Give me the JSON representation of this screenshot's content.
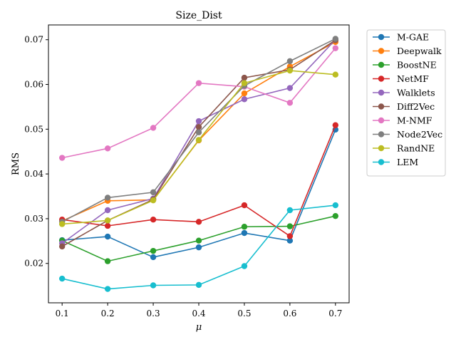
{
  "chart_data": {
    "type": "line",
    "title": "Size_Dist",
    "xlabel": "μ",
    "ylabel": "RMS",
    "x": [
      0.1,
      0.2,
      0.3,
      0.4,
      0.5,
      0.6,
      0.7
    ],
    "x_tick_labels": [
      "0.1",
      "0.2",
      "0.3",
      "0.4",
      "0.5",
      "0.6",
      "0.7"
    ],
    "y_ticks": [
      0.02,
      0.03,
      0.04,
      0.05,
      0.06,
      0.07
    ],
    "y_tick_labels": [
      "0.02",
      "0.03",
      "0.04",
      "0.05",
      "0.06",
      "0.07"
    ],
    "xlim": [
      0.07,
      0.73
    ],
    "ylim": [
      0.0112,
      0.0733
    ],
    "grid": false,
    "legend_position": "outside-right",
    "series": [
      {
        "name": "M-GAE",
        "color": "#1f77b4",
        "values": [
          0.0252,
          0.026,
          0.0214,
          0.0236,
          0.0268,
          0.0251,
          0.0499
        ]
      },
      {
        "name": "Deepwalk",
        "color": "#ff7f0e",
        "values": [
          0.0295,
          0.034,
          0.0342,
          0.0475,
          0.058,
          0.064,
          0.0695
        ]
      },
      {
        "name": "BoostNE",
        "color": "#2ca02c",
        "values": [
          0.0251,
          0.0205,
          0.0228,
          0.0251,
          0.0282,
          0.0283,
          0.0306
        ]
      },
      {
        "name": "NetMF",
        "color": "#d62728",
        "values": [
          0.0298,
          0.0284,
          0.0298,
          0.0293,
          0.033,
          0.0261,
          0.0509
        ]
      },
      {
        "name": "Walklets",
        "color": "#9467bd",
        "values": [
          0.0245,
          0.0319,
          0.0345,
          0.0518,
          0.0567,
          0.0592,
          0.07
        ]
      },
      {
        "name": "Diff2Vec",
        "color": "#8c564b",
        "values": [
          0.0238,
          0.0296,
          0.0343,
          0.0505,
          0.0615,
          0.0633,
          0.0699
        ]
      },
      {
        "name": "M-NMF",
        "color": "#e377c2",
        "values": [
          0.0436,
          0.0457,
          0.0503,
          0.0603,
          0.0595,
          0.0559,
          0.0681
        ]
      },
      {
        "name": "Node2Vec",
        "color": "#7f7f7f",
        "values": [
          0.0293,
          0.0347,
          0.0359,
          0.0493,
          0.0597,
          0.0652,
          0.0702
        ]
      },
      {
        "name": "RandNE",
        "color": "#bcbd22",
        "values": [
          0.0288,
          0.0296,
          0.0341,
          0.0476,
          0.0603,
          0.0631,
          0.0622
        ]
      },
      {
        "name": "LEM",
        "color": "#17becf",
        "values": [
          0.0166,
          0.0143,
          0.0151,
          0.0152,
          0.0194,
          0.0319,
          0.033
        ]
      }
    ]
  }
}
